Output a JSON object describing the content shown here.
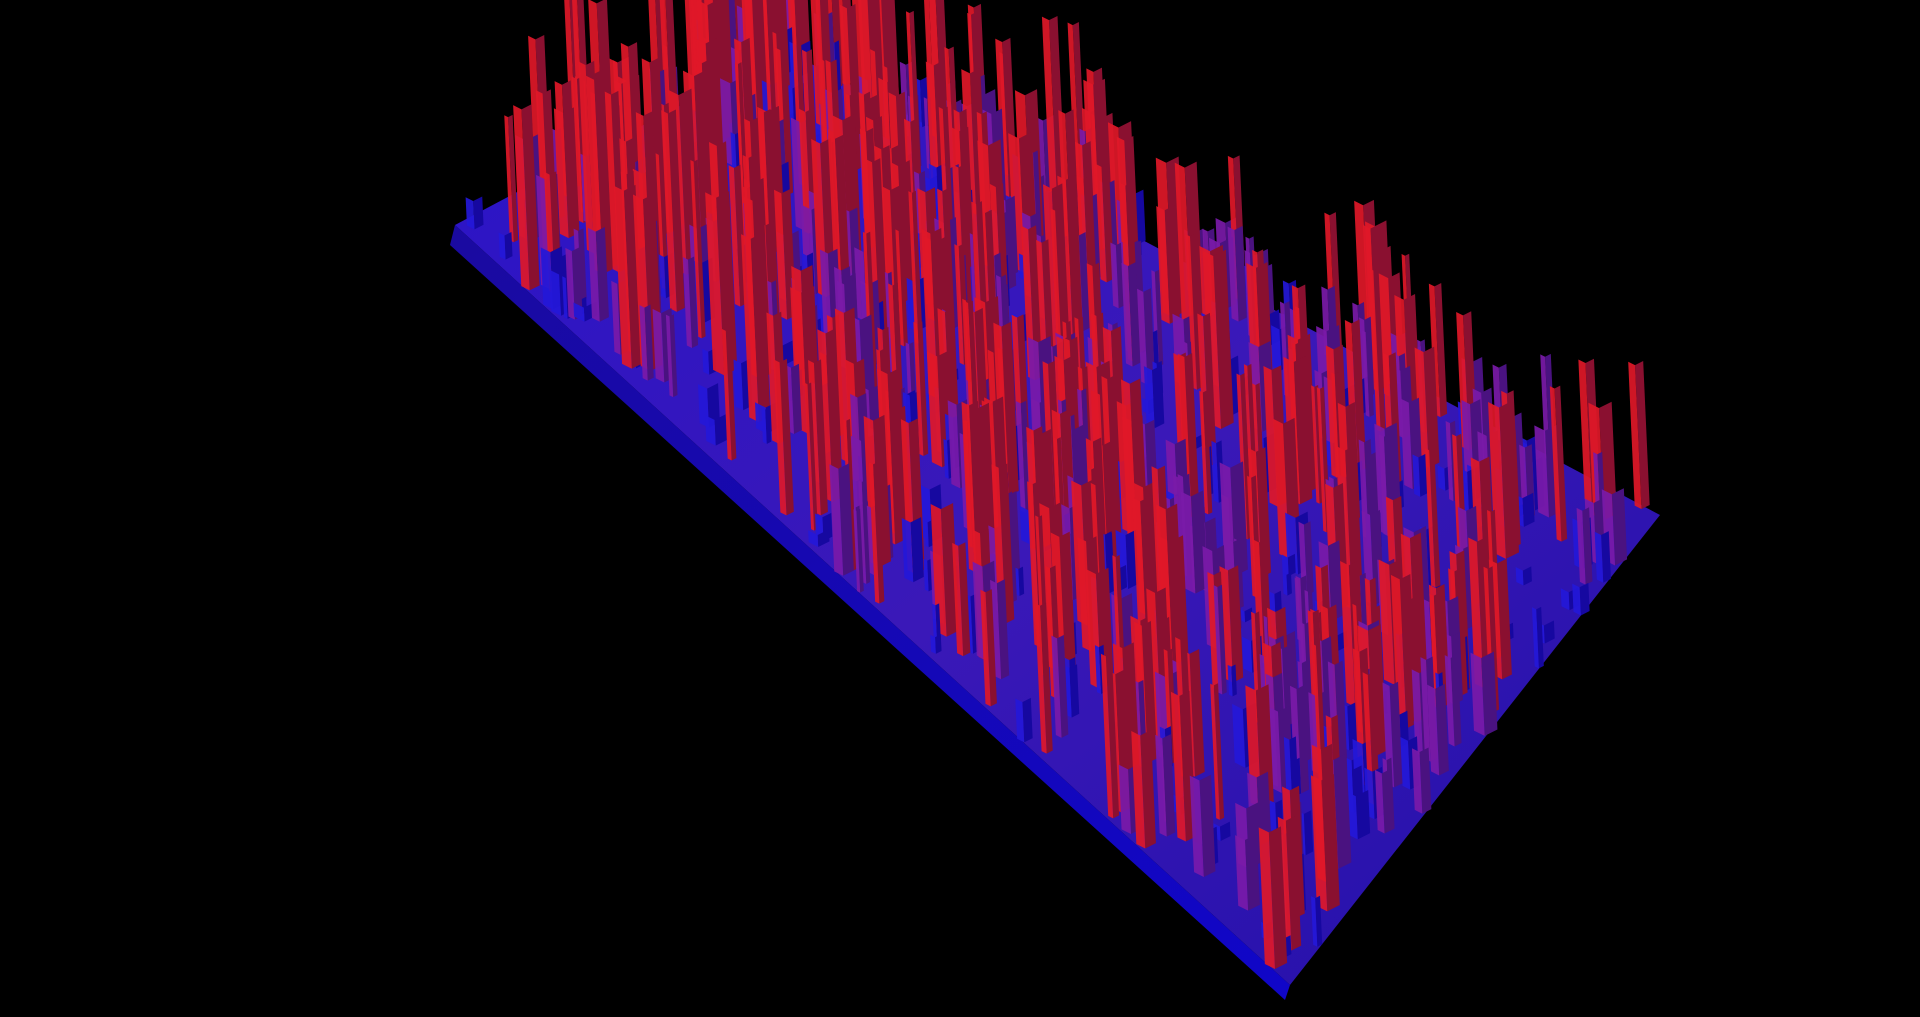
{
  "scene": {
    "subject": "city-heightmap",
    "render_style": "3d-extruded-columns",
    "background_color": "#000000",
    "palette": {
      "high": "#e01828",
      "mid": "#7a1aa8",
      "low": "#2418d8",
      "base": "#1608a0"
    }
  }
}
